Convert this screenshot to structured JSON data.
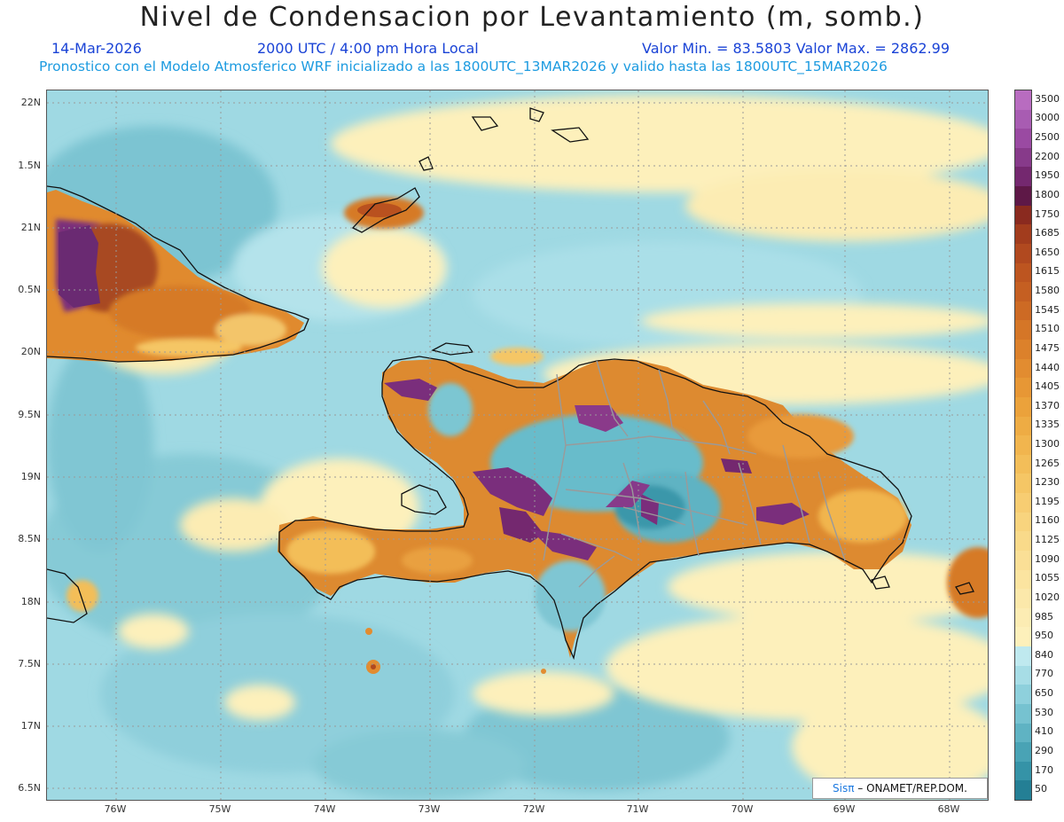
{
  "header": {
    "title": "Nivel de Condensacion por Levantamiento (m, somb.)",
    "date": "14-Mar-2026",
    "time": "2000 UTC / 4:00 pm Hora Local",
    "minmax": "Valor Min. = 83.5803   Valor Max. = 2862.99",
    "forecast": "Pronostico con el Modelo Atmosferico WRF inicializado a las 1800UTC_13MAR2026 y valido hasta las  1800UTC_15MAR2026"
  },
  "axes": {
    "lat_labels": [
      "22N",
      "1.5N",
      "21N",
      "0.5N",
      "20N",
      "9.5N",
      "19N",
      "8.5N",
      "18N",
      "7.5N",
      "17N",
      "6.5N"
    ],
    "lon_labels": [
      "76W",
      "75W",
      "74W",
      "73W",
      "72W",
      "71W",
      "70W",
      "69W",
      "68W"
    ]
  },
  "legend": {
    "labels": [
      "3500",
      "3000",
      "2500",
      "2200",
      "1950",
      "1800",
      "1750",
      "1685",
      "1650",
      "1615",
      "1580",
      "1545",
      "1510",
      "1475",
      "1440",
      "1405",
      "1370",
      "1335",
      "1300",
      "1265",
      "1230",
      "1195",
      "1160",
      "1125",
      "1090",
      "1055",
      "1020",
      "985",
      "950",
      "840",
      "770",
      "650",
      "530",
      "410",
      "290",
      "170",
      "50"
    ],
    "colors": [
      "#b86cc0",
      "#a85cb2",
      "#9a4aa2",
      "#873a8a",
      "#74286f",
      "#5e1847",
      "#8a2a1f",
      "#a23c1d",
      "#b1491f",
      "#bd5520",
      "#c55f22",
      "#cd6a24",
      "#d57627",
      "#dc812b",
      "#e28c30",
      "#e79735",
      "#eba23b",
      "#eeac44",
      "#f1b54e",
      "#f3be59",
      "#f5c665",
      "#f7cd72",
      "#f8d47e",
      "#f9da8a",
      "#fadf96",
      "#fbe4a0",
      "#fbe8aa",
      "#fcecb3",
      "#fdf0bb",
      "#bfe9ef",
      "#a7dde6",
      "#8ed0dc",
      "#76c2d0",
      "#5fb3c3",
      "#49a3b5",
      "#3593a7",
      "#247f95"
    ]
  },
  "credit": {
    "logo": "Sisπ",
    "text": " – ONAMET/REP.DOM."
  }
}
